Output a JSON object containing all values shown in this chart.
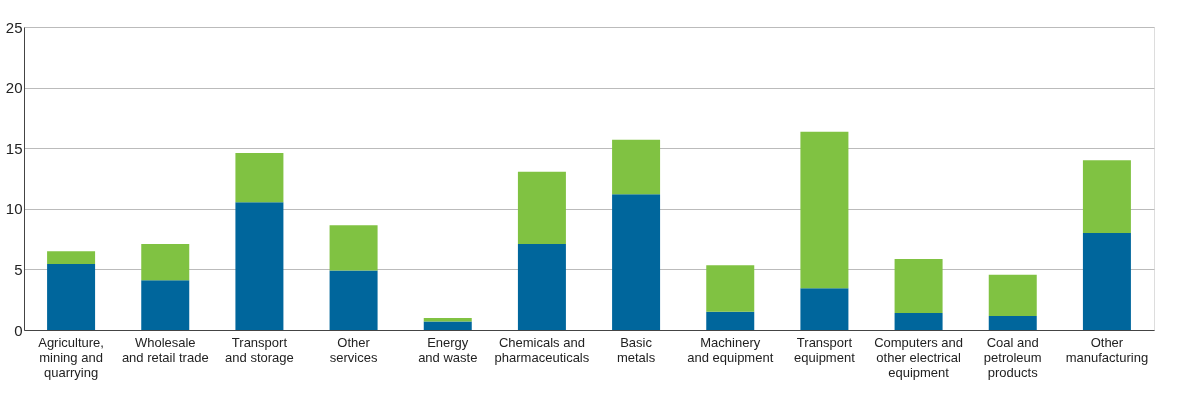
{
  "chart_data": {
    "type": "bar",
    "stacked": true,
    "categories": [
      "Agriculture,\nmining and\nquarrying",
      "Wholesale\nand retail trade",
      "Transport\nand storage",
      "Other\nservices",
      "Energy\nand waste",
      "Chemicals and\npharmaceuticals",
      "Basic\nmetals",
      "Machinery\nand equipment",
      "Transport\nequipment",
      "Computers and\nother electrical\nequipment",
      "Coal and\npetroleum\nproducts",
      "Other\nmanufacturing"
    ],
    "series": [
      {
        "color": "#00669c",
        "values": [
          5.45,
          4.1,
          10.55,
          4.9,
          0.7,
          7.1,
          11.2,
          1.5,
          3.45,
          1.4,
          1.15,
          8.0
        ]
      },
      {
        "color": "#80c242",
        "values": [
          1.05,
          3.0,
          4.05,
          3.75,
          0.3,
          5.95,
          4.5,
          3.85,
          12.9,
          4.45,
          3.4,
          6.0
        ]
      }
    ],
    "ylim": [
      0,
      25
    ],
    "yticks": [
      0,
      5,
      10,
      15,
      20,
      25
    ],
    "grid": "y",
    "legend": false
  }
}
